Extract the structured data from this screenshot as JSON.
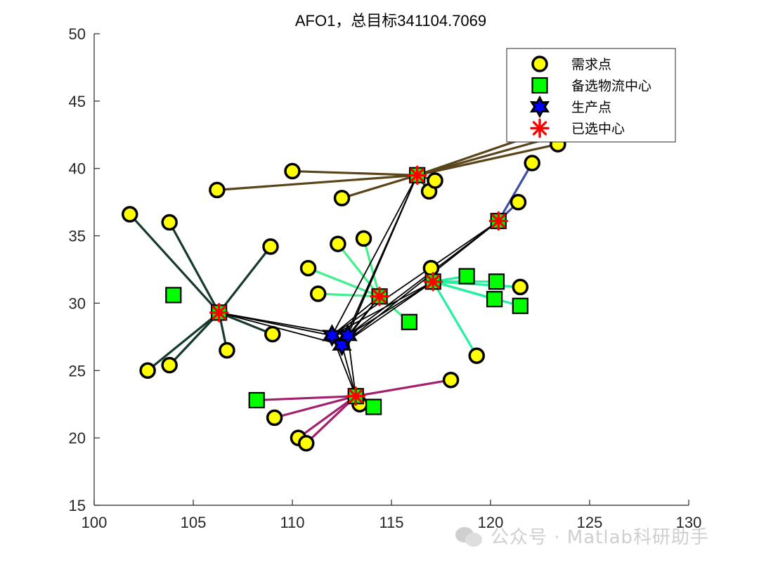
{
  "chart_data": {
    "type": "scatter",
    "title": "AFO1，总目标341104.7069",
    "xlim": [
      100,
      130
    ],
    "ylim": [
      15,
      50
    ],
    "xticks": [
      100,
      105,
      110,
      115,
      120,
      125,
      130
    ],
    "yticks": [
      15,
      20,
      25,
      30,
      35,
      40,
      45,
      50
    ],
    "grid": false,
    "legend": {
      "position": "top-right",
      "entries": [
        {
          "key": "demand",
          "label": "需求点"
        },
        {
          "key": "candidate",
          "label": "备选物流中心"
        },
        {
          "key": "production",
          "label": "生产点"
        },
        {
          "key": "selected",
          "label": "已选中心"
        }
      ]
    },
    "colors": {
      "demand_fill": "#ffff00",
      "candidate_fill": "#00ff00",
      "production_fill": "#0000ff",
      "selected": "#ff0000",
      "production_link": "#000000",
      "axis": "#262626"
    },
    "demand_points": [
      [
        101.8,
        36.6
      ],
      [
        103.8,
        36.0
      ],
      [
        102.7,
        25.0
      ],
      [
        103.8,
        25.4
      ],
      [
        106.7,
        26.5
      ],
      [
        109.0,
        27.7
      ],
      [
        108.9,
        34.2
      ],
      [
        106.2,
        38.4
      ],
      [
        110.0,
        39.8
      ],
      [
        112.5,
        37.8
      ],
      [
        116.9,
        38.3
      ],
      [
        117.2,
        39.1
      ],
      [
        123.4,
        41.8
      ],
      [
        122.1,
        40.4
      ],
      [
        121.4,
        37.5
      ],
      [
        110.8,
        32.6
      ],
      [
        111.3,
        30.7
      ],
      [
        112.3,
        34.4
      ],
      [
        113.6,
        34.8
      ],
      [
        117.0,
        32.6
      ],
      [
        121.5,
        31.2
      ],
      [
        119.3,
        26.1
      ],
      [
        118.0,
        24.3
      ],
      [
        109.1,
        21.5
      ],
      [
        110.3,
        20.0
      ],
      [
        110.7,
        19.6
      ],
      [
        113.4,
        22.5
      ]
    ],
    "candidate_centers": [
      [
        104.0,
        30.6
      ],
      [
        115.9,
        28.6
      ],
      [
        118.8,
        32.0
      ],
      [
        120.3,
        31.6
      ],
      [
        120.2,
        30.3
      ],
      [
        121.5,
        29.8
      ],
      [
        108.2,
        22.8
      ],
      [
        114.1,
        22.3
      ],
      [
        116.3,
        39.5
      ],
      [
        120.4,
        36.1
      ],
      [
        106.3,
        29.3
      ],
      [
        114.4,
        30.5
      ],
      [
        117.1,
        31.6
      ],
      [
        113.2,
        23.1
      ]
    ],
    "production_points": [
      [
        112.0,
        27.6
      ],
      [
        112.5,
        26.9
      ],
      [
        112.8,
        27.6
      ]
    ],
    "selected_centers": [
      [
        106.3,
        29.3
      ],
      [
        116.3,
        39.5
      ],
      [
        120.4,
        36.1
      ],
      [
        114.4,
        30.5
      ],
      [
        117.1,
        31.6
      ],
      [
        113.2,
        23.1
      ]
    ],
    "clusters": [
      {
        "center": [
          106.3,
          29.3
        ],
        "color": "#163a2e",
        "members": [
          [
            101.8,
            36.6
          ],
          [
            103.8,
            36.0
          ],
          [
            102.7,
            25.0
          ],
          [
            103.8,
            25.4
          ],
          [
            106.7,
            26.5
          ],
          [
            109.0,
            27.7
          ],
          [
            108.9,
            34.2
          ]
        ]
      },
      {
        "center": [
          116.3,
          39.5
        ],
        "color": "#594519",
        "members": [
          [
            106.2,
            38.4
          ],
          [
            110.0,
            39.8
          ],
          [
            112.5,
            37.8
          ],
          [
            116.9,
            38.3
          ],
          [
            117.2,
            39.1
          ],
          [
            123.4,
            41.8
          ],
          [
            124.8,
            43.0
          ],
          [
            123.2,
            43.0
          ]
        ]
      },
      {
        "center": [
          120.4,
          36.1
        ],
        "color": "#3f4fa3",
        "members": [
          [
            122.1,
            40.4
          ],
          [
            121.4,
            37.5
          ]
        ]
      },
      {
        "center": [
          114.4,
          30.5
        ],
        "color": "#40f28c",
        "members": [
          [
            110.8,
            32.6
          ],
          [
            111.3,
            30.7
          ],
          [
            112.3,
            34.4
          ],
          [
            113.6,
            34.8
          ],
          [
            115.9,
            28.6
          ]
        ]
      },
      {
        "center": [
          117.1,
          31.6
        ],
        "color": "#25f0a0",
        "members": [
          [
            118.8,
            32.0
          ],
          [
            120.3,
            31.6
          ],
          [
            120.2,
            30.3
          ],
          [
            121.5,
            31.2
          ],
          [
            121.5,
            29.8
          ],
          [
            119.3,
            26.1
          ],
          [
            117.0,
            32.6
          ]
        ]
      },
      {
        "center": [
          113.2,
          23.1
        ],
        "color": "#a3206e",
        "members": [
          [
            108.2,
            22.8
          ],
          [
            109.1,
            21.5
          ],
          [
            110.3,
            20.0
          ],
          [
            110.7,
            19.6
          ],
          [
            113.4,
            22.5
          ],
          [
            114.1,
            22.3
          ],
          [
            118.0,
            24.3
          ]
        ]
      }
    ],
    "production_links": [
      {
        "from": [
          112.0,
          27.6
        ],
        "to": [
          106.3,
          29.3
        ]
      },
      {
        "from": [
          112.5,
          26.9
        ],
        "to": [
          106.3,
          29.3
        ]
      },
      {
        "from": [
          112.8,
          27.6
        ],
        "to": [
          106.3,
          29.3
        ]
      },
      {
        "from": [
          112.0,
          27.6
        ],
        "to": [
          116.3,
          39.5
        ]
      },
      {
        "from": [
          112.5,
          26.9
        ],
        "to": [
          116.3,
          39.5
        ]
      },
      {
        "from": [
          112.8,
          27.6
        ],
        "to": [
          116.3,
          39.5
        ]
      },
      {
        "from": [
          112.0,
          27.6
        ],
        "to": [
          120.4,
          36.1
        ]
      },
      {
        "from": [
          112.5,
          26.9
        ],
        "to": [
          120.4,
          36.1
        ]
      },
      {
        "from": [
          112.8,
          27.6
        ],
        "to": [
          120.4,
          36.1
        ]
      },
      {
        "from": [
          112.0,
          27.6
        ],
        "to": [
          114.4,
          30.5
        ]
      },
      {
        "from": [
          112.5,
          26.9
        ],
        "to": [
          114.4,
          30.5
        ]
      },
      {
        "from": [
          112.8,
          27.6
        ],
        "to": [
          114.4,
          30.5
        ]
      },
      {
        "from": [
          112.0,
          27.6
        ],
        "to": [
          117.1,
          31.6
        ]
      },
      {
        "from": [
          112.5,
          26.9
        ],
        "to": [
          117.1,
          31.6
        ]
      },
      {
        "from": [
          112.8,
          27.6
        ],
        "to": [
          117.1,
          31.6
        ]
      },
      {
        "from": [
          112.0,
          27.6
        ],
        "to": [
          113.2,
          23.1
        ]
      },
      {
        "from": [
          112.5,
          26.9
        ],
        "to": [
          113.2,
          23.1
        ]
      },
      {
        "from": [
          112.8,
          27.6
        ],
        "to": [
          113.2,
          23.1
        ]
      }
    ]
  },
  "watermark": {
    "text": "公众号 · Matlab科研助手"
  }
}
